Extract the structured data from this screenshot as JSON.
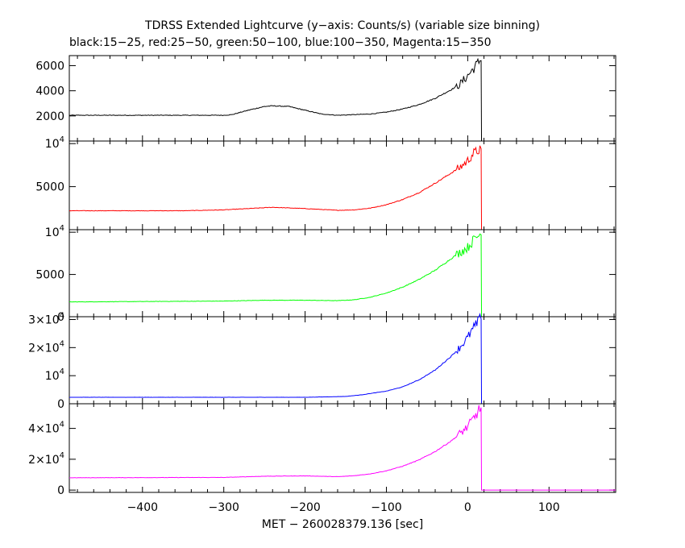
{
  "chart_data": {
    "type": "line",
    "title": "TDRSS Extended Lightcurve (y−axis: Counts/s) (variable size binning)",
    "subtitle": "black:15−25, red:25−50, green:50−100, blue:100−350, Magenta:15−350",
    "xlabel": "MET − 260028379.136 [sec]",
    "xlim": [
      -490,
      182
    ],
    "x_ticks": [
      -400,
      -300,
      -200,
      -100,
      0,
      100
    ],
    "x_tick_labels": [
      "−400",
      "−300",
      "−200",
      "−100",
      "0",
      "100"
    ],
    "panels": [
      {
        "name": "15-25",
        "color": "#000000",
        "ylim": [
          0,
          6800
        ],
        "yticks": [
          {
            "v": 2000,
            "m": "2000"
          },
          {
            "v": 4000,
            "m": "4000"
          },
          {
            "v": 6000,
            "m": "6000"
          }
        ],
        "x": [
          -490,
          -300,
          -290,
          -270,
          -250,
          -240,
          -220,
          -200,
          -180,
          -160,
          -140,
          -120,
          -100,
          -80,
          -60,
          -40,
          -20,
          -10,
          0,
          5,
          10,
          15,
          16.5,
          17,
          182
        ],
        "y": [
          2050,
          2050,
          2100,
          2450,
          2750,
          2800,
          2750,
          2450,
          2150,
          2050,
          2100,
          2150,
          2300,
          2550,
          2900,
          3400,
          4100,
          4500,
          5200,
          5600,
          6000,
          6400,
          6400,
          0,
          0
        ]
      },
      {
        "name": "25-50",
        "color": "#ff0000",
        "ylim": [
          0,
          10300
        ],
        "yticks": [
          {
            "v": 5000,
            "m": "5000"
          },
          {
            "v": 10000,
            "m": "10",
            "e": "4"
          }
        ],
        "x": [
          -490,
          -350,
          -300,
          -250,
          -240,
          -200,
          -160,
          -140,
          -120,
          -100,
          -80,
          -60,
          -40,
          -20,
          -10,
          0,
          5,
          10,
          15,
          16.5,
          17,
          182
        ],
        "y": [
          2200,
          2200,
          2300,
          2550,
          2600,
          2450,
          2250,
          2300,
          2500,
          2900,
          3500,
          4300,
          5400,
          6600,
          7200,
          8000,
          8700,
          9000,
          9400,
          9400,
          0,
          0
        ]
      },
      {
        "name": "50-100",
        "color": "#00ff00",
        "ylim": [
          0,
          10300
        ],
        "yticks": [
          {
            "v": 0,
            "m": "0"
          },
          {
            "v": 5000,
            "m": "5000"
          },
          {
            "v": 10000,
            "m": "10",
            "e": "4"
          }
        ],
        "x": [
          -490,
          -300,
          -250,
          -200,
          -160,
          -140,
          -120,
          -100,
          -80,
          -60,
          -40,
          -20,
          -10,
          0,
          5,
          10,
          15,
          16.5,
          17,
          182
        ],
        "y": [
          1750,
          1850,
          1950,
          1950,
          1900,
          2000,
          2300,
          2800,
          3500,
          4400,
          5500,
          6900,
          7600,
          8200,
          8800,
          9400,
          9700,
          9700,
          0,
          0
        ]
      },
      {
        "name": "100-350",
        "color": "#0000ff",
        "ylim": [
          0,
          31000
        ],
        "yticks": [
          {
            "v": 0,
            "m": "0"
          },
          {
            "v": 10000,
            "m": "10",
            "e": "4"
          },
          {
            "v": 20000,
            "m": "2×10",
            "e": "4"
          },
          {
            "v": 30000,
            "m": "3×10",
            "e": "4"
          }
        ],
        "x": [
          -490,
          -200,
          -150,
          -130,
          -100,
          -80,
          -60,
          -40,
          -20,
          -10,
          0,
          5,
          10,
          15,
          16.5,
          17,
          182
        ],
        "y": [
          2300,
          2300,
          2600,
          3200,
          4500,
          6000,
          8500,
          12000,
          17000,
          20000,
          23500,
          26000,
          28000,
          30000,
          30200,
          0,
          0
        ]
      },
      {
        "name": "15-350",
        "color": "#ff00ff",
        "ylim": [
          -1500,
          56000
        ],
        "yticks": [
          {
            "v": 0,
            "m": "0"
          },
          {
            "v": 20000,
            "m": "2×10",
            "e": "4"
          },
          {
            "v": 40000,
            "m": "4×10",
            "e": "4"
          }
        ],
        "x": [
          -490,
          -300,
          -250,
          -200,
          -160,
          -140,
          -120,
          -100,
          -80,
          -60,
          -40,
          -20,
          -10,
          0,
          5,
          10,
          15,
          16.5,
          17,
          182
        ],
        "y": [
          8000,
          8200,
          9000,
          9200,
          8700,
          9300,
          10500,
          12500,
          15500,
          19500,
          25000,
          32000,
          36500,
          41000,
          45000,
          48500,
          53000,
          53500,
          0,
          0
        ]
      }
    ]
  }
}
